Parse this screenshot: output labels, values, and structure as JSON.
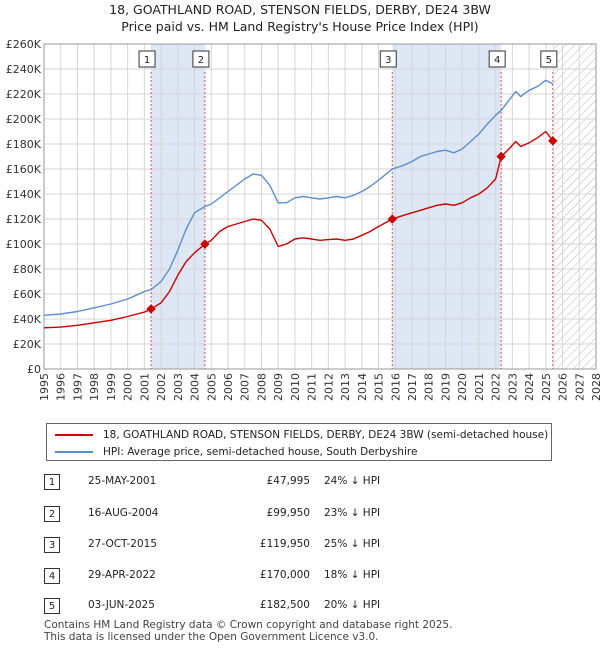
{
  "title_line1": "18, GOATHLAND ROAD, STENSON FIELDS, DERBY, DE24 3BW",
  "title_line2": "Price paid vs. HM Land Registry's House Price Index (HPI)",
  "colors": {
    "property": "#cc0000",
    "hpi": "#5b8fd0",
    "grid": "#d6d6d6",
    "shade": "#dde7f5",
    "axis": "#333333"
  },
  "chart_data": {
    "type": "line",
    "xlim": [
      1995,
      2028
    ],
    "ylim": [
      0,
      260000
    ],
    "x_ticks": [
      1995,
      1996,
      1997,
      1998,
      1999,
      2000,
      2001,
      2002,
      2003,
      2004,
      2005,
      2006,
      2007,
      2008,
      2009,
      2010,
      2011,
      2012,
      2013,
      2014,
      2015,
      2016,
      2017,
      2018,
      2019,
      2020,
      2021,
      2022,
      2023,
      2024,
      2025,
      2026,
      2027,
      2028
    ],
    "y_ticks": [
      0,
      20000,
      40000,
      60000,
      80000,
      100000,
      120000,
      140000,
      160000,
      180000,
      200000,
      220000,
      240000,
      260000
    ],
    "y_tick_labels": [
      "£0",
      "£20K",
      "£40K",
      "£60K",
      "£80K",
      "£100K",
      "£120K",
      "£140K",
      "£160K",
      "£180K",
      "£200K",
      "£220K",
      "£240K",
      "£260K"
    ],
    "hatch_from": 2025.5,
    "series": [
      {
        "name": "18, GOATHLAND ROAD, STENSON FIELDS, DERBY, DE24 3BW (semi-detached house)",
        "color": "#cc0000",
        "points": [
          [
            1995.0,
            33000
          ],
          [
            1996.0,
            33500
          ],
          [
            1997.0,
            35000
          ],
          [
            1998.0,
            37000
          ],
          [
            1999.0,
            39000
          ],
          [
            2000.0,
            42000
          ],
          [
            2001.0,
            45500
          ],
          [
            2001.4,
            47995
          ],
          [
            2002.0,
            53000
          ],
          [
            2002.5,
            62000
          ],
          [
            2003.0,
            75000
          ],
          [
            2003.5,
            86000
          ],
          [
            2004.0,
            93000
          ],
          [
            2004.62,
            99950
          ],
          [
            2005.0,
            103000
          ],
          [
            2005.5,
            110000
          ],
          [
            2006.0,
            114000
          ],
          [
            2006.5,
            116000
          ],
          [
            2007.0,
            118000
          ],
          [
            2007.5,
            120000
          ],
          [
            2008.0,
            119000
          ],
          [
            2008.5,
            112000
          ],
          [
            2009.0,
            98000
          ],
          [
            2009.5,
            100000
          ],
          [
            2010.0,
            104000
          ],
          [
            2010.5,
            105000
          ],
          [
            2011.0,
            104000
          ],
          [
            2011.5,
            103000
          ],
          [
            2012.0,
            103500
          ],
          [
            2012.5,
            104000
          ],
          [
            2013.0,
            103000
          ],
          [
            2013.5,
            104000
          ],
          [
            2014.0,
            107000
          ],
          [
            2014.5,
            110000
          ],
          [
            2015.0,
            114000
          ],
          [
            2015.82,
            119950
          ],
          [
            2016.5,
            123000
          ],
          [
            2017.0,
            125000
          ],
          [
            2017.5,
            127000
          ],
          [
            2018.0,
            129000
          ],
          [
            2018.5,
            131000
          ],
          [
            2019.0,
            132000
          ],
          [
            2019.5,
            131000
          ],
          [
            2020.0,
            133000
          ],
          [
            2020.5,
            137000
          ],
          [
            2021.0,
            140000
          ],
          [
            2021.5,
            145000
          ],
          [
            2022.0,
            152000
          ],
          [
            2022.33,
            170000
          ],
          [
            2022.8,
            176000
          ],
          [
            2023.2,
            182000
          ],
          [
            2023.5,
            178000
          ],
          [
            2024.0,
            181000
          ],
          [
            2024.5,
            185000
          ],
          [
            2025.0,
            190000
          ],
          [
            2025.42,
            182500
          ]
        ]
      },
      {
        "name": "HPI: Average price, semi-detached house, South Derbyshire",
        "color": "#5b8fd0",
        "points": [
          [
            1995.0,
            43000
          ],
          [
            1996.0,
            44000
          ],
          [
            1997.0,
            46000
          ],
          [
            1998.0,
            49000
          ],
          [
            1999.0,
            52000
          ],
          [
            2000.0,
            56000
          ],
          [
            2000.5,
            59000
          ],
          [
            2001.0,
            62000
          ],
          [
            2001.4,
            63500
          ],
          [
            2002.0,
            70000
          ],
          [
            2002.5,
            80000
          ],
          [
            2003.0,
            95000
          ],
          [
            2003.5,
            112000
          ],
          [
            2004.0,
            125000
          ],
          [
            2004.62,
            130000
          ],
          [
            2005.0,
            132000
          ],
          [
            2005.5,
            137000
          ],
          [
            2006.0,
            142000
          ],
          [
            2006.5,
            147000
          ],
          [
            2007.0,
            152000
          ],
          [
            2007.5,
            156000
          ],
          [
            2008.0,
            155000
          ],
          [
            2008.5,
            147000
          ],
          [
            2009.0,
            133000
          ],
          [
            2009.5,
            133000
          ],
          [
            2010.0,
            137000
          ],
          [
            2010.5,
            138000
          ],
          [
            2011.0,
            137000
          ],
          [
            2011.5,
            136000
          ],
          [
            2012.0,
            137000
          ],
          [
            2012.5,
            138000
          ],
          [
            2013.0,
            137000
          ],
          [
            2013.5,
            139000
          ],
          [
            2014.0,
            142000
          ],
          [
            2014.5,
            146000
          ],
          [
            2015.0,
            151000
          ],
          [
            2015.82,
            160000
          ],
          [
            2016.5,
            163000
          ],
          [
            2017.0,
            166000
          ],
          [
            2017.5,
            170000
          ],
          [
            2018.0,
            172000
          ],
          [
            2018.5,
            174000
          ],
          [
            2019.0,
            175000
          ],
          [
            2019.5,
            173000
          ],
          [
            2020.0,
            176000
          ],
          [
            2020.5,
            182000
          ],
          [
            2021.0,
            188000
          ],
          [
            2021.5,
            196000
          ],
          [
            2022.0,
            203000
          ],
          [
            2022.33,
            207000
          ],
          [
            2022.8,
            215000
          ],
          [
            2023.2,
            222000
          ],
          [
            2023.5,
            218000
          ],
          [
            2024.0,
            223000
          ],
          [
            2024.5,
            226000
          ],
          [
            2025.0,
            231000
          ],
          [
            2025.42,
            228000
          ]
        ]
      }
    ],
    "sales": [
      {
        "n": "1",
        "x": 2001.4,
        "value": 47995
      },
      {
        "n": "2",
        "x": 2004.62,
        "value": 99950
      },
      {
        "n": "3",
        "x": 2015.82,
        "value": 119950
      },
      {
        "n": "4",
        "x": 2022.33,
        "value": 170000
      },
      {
        "n": "5",
        "x": 2025.42,
        "value": 182500
      }
    ]
  },
  "legend": {
    "property_label": "18, GOATHLAND ROAD, STENSON FIELDS, DERBY, DE24 3BW (semi-detached house)",
    "hpi_label": "HPI: Average price, semi-detached house, South Derbyshire"
  },
  "sales_table": [
    {
      "num": "1",
      "date": "25-MAY-2001",
      "price": "£47,995",
      "hpi": "24% ↓ HPI"
    },
    {
      "num": "2",
      "date": "16-AUG-2004",
      "price": "£99,950",
      "hpi": "23% ↓ HPI"
    },
    {
      "num": "3",
      "date": "27-OCT-2015",
      "price": "£119,950",
      "hpi": "25% ↓ HPI"
    },
    {
      "num": "4",
      "date": "29-APR-2022",
      "price": "£170,000",
      "hpi": "18% ↓ HPI"
    },
    {
      "num": "5",
      "date": "03-JUN-2025",
      "price": "£182,500",
      "hpi": "20% ↓ HPI"
    }
  ],
  "footer": {
    "line1": "Contains HM Land Registry data © Crown copyright and database right 2025.",
    "line2": "This data is licensed under the Open Government Licence v3.0."
  }
}
